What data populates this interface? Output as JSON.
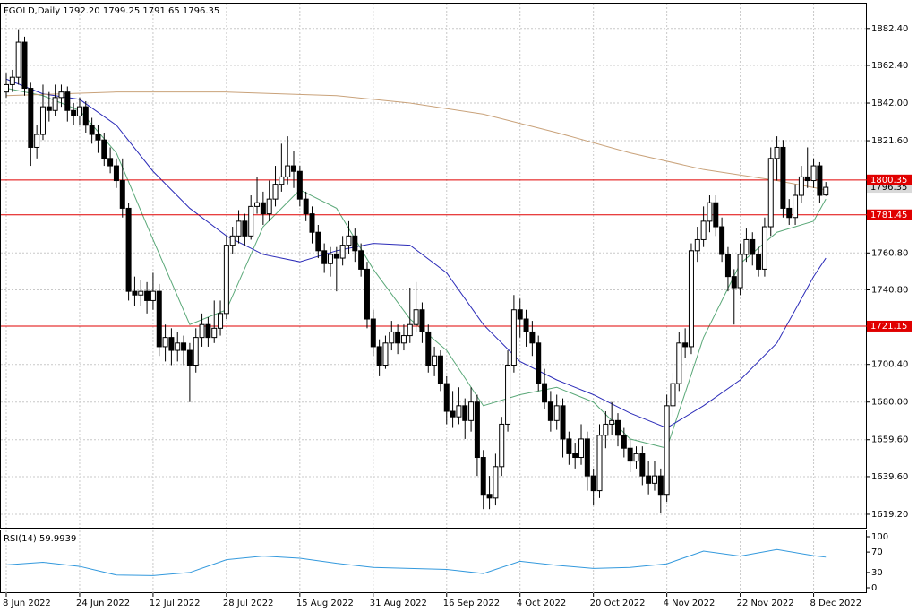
{
  "chart_data": {
    "type": "candlestick",
    "title": "FGOLD,Daily  1792.20 1799.25 1791.65 1796.35",
    "categories": [
      "8 Jun 2022",
      null,
      null,
      null,
      null,
      null,
      null,
      null,
      null,
      null,
      null,
      null,
      "24 Jun 2022",
      null,
      null,
      null,
      null,
      null,
      null,
      null,
      null,
      null,
      null,
      null,
      "12 Jul 2022",
      null,
      null,
      null,
      null,
      null,
      null,
      null,
      null,
      null,
      null,
      null,
      "28 Jul 2022",
      null,
      null,
      null,
      null,
      null,
      null,
      null,
      null,
      null,
      null,
      null,
      "15 Aug 2022",
      null,
      null,
      null,
      null,
      null,
      null,
      null,
      null,
      null,
      null,
      null,
      "31 Aug 2022",
      null,
      null,
      null,
      null,
      null,
      null,
      null,
      null,
      null,
      null,
      null,
      "16 Sep 2022",
      null,
      null,
      null,
      null,
      null,
      null,
      null,
      null,
      null,
      null,
      null,
      "4 Oct 2022",
      null,
      null,
      null,
      null,
      null,
      null,
      null,
      null,
      null,
      null,
      null,
      "20 Oct 2022",
      null,
      null,
      null,
      null,
      null,
      null,
      null,
      null,
      null,
      null,
      null,
      "4 Nov 2022",
      null,
      null,
      null,
      null,
      null,
      null,
      null,
      null,
      null,
      null,
      null,
      "22 Nov 2022",
      null,
      null,
      null,
      null,
      null,
      null,
      null,
      null,
      null,
      null,
      null,
      "8 Dec 2022",
      null,
      null
    ],
    "candles": [
      [
        1848,
        1858,
        1845,
        1852
      ],
      [
        1852,
        1860,
        1848,
        1856
      ],
      [
        1856,
        1882,
        1852,
        1875
      ],
      [
        1875,
        1878,
        1846,
        1850
      ],
      [
        1850,
        1853,
        1808,
        1818
      ],
      [
        1818,
        1830,
        1812,
        1825
      ],
      [
        1825,
        1852,
        1822,
        1840
      ],
      [
        1840,
        1848,
        1832,
        1838
      ],
      [
        1838,
        1852,
        1835,
        1845
      ],
      [
        1845,
        1852,
        1840,
        1848
      ],
      [
        1848,
        1851,
        1832,
        1838
      ],
      [
        1838,
        1842,
        1830,
        1835
      ],
      [
        1835,
        1845,
        1830,
        1840
      ],
      [
        1840,
        1843,
        1826,
        1830
      ],
      [
        1830,
        1834,
        1820,
        1825
      ],
      [
        1825,
        1830,
        1815,
        1822
      ],
      [
        1822,
        1826,
        1808,
        1812
      ],
      [
        1812,
        1818,
        1804,
        1808
      ],
      [
        1808,
        1812,
        1796,
        1800
      ],
      [
        1800,
        1812,
        1780,
        1785
      ],
      [
        1785,
        1788,
        1735,
        1740
      ],
      [
        1740,
        1748,
        1732,
        1738
      ],
      [
        1738,
        1746,
        1732,
        1740
      ],
      [
        1740,
        1745,
        1728,
        1735
      ],
      [
        1735,
        1750,
        1730,
        1740
      ],
      [
        1740,
        1744,
        1705,
        1710
      ],
      [
        1710,
        1722,
        1702,
        1715
      ],
      [
        1715,
        1720,
        1700,
        1708
      ],
      [
        1708,
        1718,
        1702,
        1712
      ],
      [
        1712,
        1716,
        1700,
        1708
      ],
      [
        1708,
        1712,
        1680,
        1700
      ],
      [
        1700,
        1720,
        1696,
        1715
      ],
      [
        1715,
        1728,
        1710,
        1722
      ],
      [
        1722,
        1726,
        1710,
        1715
      ],
      [
        1715,
        1735,
        1712,
        1720
      ],
      [
        1720,
        1735,
        1716,
        1728
      ],
      [
        1728,
        1770,
        1725,
        1765
      ],
      [
        1765,
        1775,
        1760,
        1770
      ],
      [
        1770,
        1784,
        1766,
        1778
      ],
      [
        1778,
        1782,
        1765,
        1770
      ],
      [
        1770,
        1792,
        1768,
        1786
      ],
      [
        1786,
        1802,
        1782,
        1788
      ],
      [
        1788,
        1794,
        1776,
        1782
      ],
      [
        1782,
        1800,
        1778,
        1790
      ],
      [
        1790,
        1808,
        1786,
        1798
      ],
      [
        1798,
        1820,
        1794,
        1802
      ],
      [
        1802,
        1824,
        1798,
        1808
      ],
      [
        1808,
        1816,
        1796,
        1805
      ],
      [
        1805,
        1808,
        1786,
        1790
      ],
      [
        1790,
        1794,
        1778,
        1782
      ],
      [
        1782,
        1786,
        1766,
        1772
      ],
      [
        1772,
        1776,
        1758,
        1762
      ],
      [
        1762,
        1766,
        1750,
        1755
      ],
      [
        1755,
        1764,
        1748,
        1760
      ],
      [
        1760,
        1764,
        1740,
        1758
      ],
      [
        1758,
        1770,
        1754,
        1765
      ],
      [
        1765,
        1778,
        1760,
        1770
      ],
      [
        1770,
        1774,
        1756,
        1762
      ],
      [
        1762,
        1766,
        1748,
        1752
      ],
      [
        1752,
        1756,
        1720,
        1725
      ],
      [
        1725,
        1730,
        1705,
        1710
      ],
      [
        1710,
        1714,
        1694,
        1700
      ],
      [
        1700,
        1716,
        1698,
        1712
      ],
      [
        1712,
        1724,
        1708,
        1718
      ],
      [
        1718,
        1722,
        1706,
        1712
      ],
      [
        1712,
        1722,
        1708,
        1716
      ],
      [
        1716,
        1742,
        1712,
        1722
      ],
      [
        1722,
        1745,
        1718,
        1730
      ],
      [
        1730,
        1734,
        1712,
        1718
      ],
      [
        1718,
        1722,
        1696,
        1700
      ],
      [
        1700,
        1710,
        1694,
        1705
      ],
      [
        1705,
        1708,
        1686,
        1690
      ],
      [
        1690,
        1694,
        1668,
        1675
      ],
      [
        1675,
        1686,
        1666,
        1672
      ],
      [
        1672,
        1688,
        1668,
        1678
      ],
      [
        1678,
        1682,
        1660,
        1670
      ],
      [
        1670,
        1688,
        1664,
        1680
      ],
      [
        1680,
        1684,
        1640,
        1650
      ],
      [
        1650,
        1654,
        1622,
        1630
      ],
      [
        1630,
        1640,
        1622,
        1628
      ],
      [
        1628,
        1652,
        1624,
        1645
      ],
      [
        1645,
        1672,
        1640,
        1668
      ],
      [
        1668,
        1708,
        1664,
        1700
      ],
      [
        1700,
        1738,
        1696,
        1730
      ],
      [
        1730,
        1736,
        1715,
        1725
      ],
      [
        1725,
        1730,
        1710,
        1718
      ],
      [
        1718,
        1724,
        1705,
        1712
      ],
      [
        1712,
        1716,
        1686,
        1690
      ],
      [
        1690,
        1698,
        1676,
        1680
      ],
      [
        1680,
        1686,
        1664,
        1670
      ],
      [
        1670,
        1684,
        1665,
        1678
      ],
      [
        1678,
        1682,
        1650,
        1660
      ],
      [
        1660,
        1664,
        1646,
        1652
      ],
      [
        1652,
        1658,
        1644,
        1650
      ],
      [
        1650,
        1668,
        1646,
        1660
      ],
      [
        1660,
        1664,
        1632,
        1640
      ],
      [
        1640,
        1644,
        1624,
        1632
      ],
      [
        1632,
        1668,
        1628,
        1662
      ],
      [
        1662,
        1675,
        1655,
        1668
      ],
      [
        1668,
        1680,
        1662,
        1670
      ],
      [
        1670,
        1674,
        1656,
        1662
      ],
      [
        1662,
        1666,
        1650,
        1655
      ],
      [
        1655,
        1660,
        1642,
        1648
      ],
      [
        1648,
        1656,
        1644,
        1652
      ],
      [
        1652,
        1656,
        1635,
        1640
      ],
      [
        1640,
        1648,
        1630,
        1636
      ],
      [
        1636,
        1648,
        1632,
        1640
      ],
      [
        1640,
        1644,
        1620,
        1630
      ],
      [
        1630,
        1684,
        1626,
        1678
      ],
      [
        1678,
        1696,
        1672,
        1690
      ],
      [
        1690,
        1718,
        1686,
        1712
      ],
      [
        1712,
        1720,
        1704,
        1710
      ],
      [
        1710,
        1766,
        1706,
        1762
      ],
      [
        1762,
        1775,
        1756,
        1768
      ],
      [
        1768,
        1786,
        1764,
        1778
      ],
      [
        1778,
        1792,
        1772,
        1788
      ],
      [
        1788,
        1792,
        1770,
        1775
      ],
      [
        1775,
        1780,
        1756,
        1760
      ],
      [
        1760,
        1764,
        1740,
        1748
      ],
      [
        1748,
        1752,
        1722,
        1742
      ],
      [
        1742,
        1766,
        1738,
        1760
      ],
      [
        1760,
        1774,
        1756,
        1768
      ],
      [
        1768,
        1772,
        1754,
        1760
      ],
      [
        1760,
        1764,
        1748,
        1752
      ],
      [
        1752,
        1780,
        1748,
        1775
      ],
      [
        1775,
        1818,
        1770,
        1812
      ],
      [
        1812,
        1824,
        1800,
        1818
      ],
      [
        1818,
        1822,
        1780,
        1785
      ],
      [
        1785,
        1790,
        1776,
        1780
      ],
      [
        1780,
        1798,
        1776,
        1792
      ],
      [
        1792,
        1808,
        1788,
        1802
      ],
      [
        1802,
        1818,
        1796,
        1800
      ],
      [
        1800,
        1812,
        1796,
        1808
      ],
      [
        1808,
        1810,
        1788,
        1792
      ],
      [
        1792.2,
        1799.25,
        1791.65,
        1796.35
      ]
    ],
    "bull_color": "#ffffff",
    "bear_color": "#000000",
    "overlays": [
      {
        "color": "#5aa878",
        "x": [
          0,
          6,
          12,
          18,
          24,
          30,
          36,
          42,
          48,
          54,
          60,
          66,
          72,
          78,
          84,
          90,
          96,
          102,
          108,
          114,
          120,
          126,
          132,
          134
        ],
        "values": [
          1850,
          1846,
          1838,
          1815,
          1768,
          1722,
          1730,
          1775,
          1795,
          1785,
          1752,
          1725,
          1708,
          1678,
          1684,
          1688,
          1680,
          1660,
          1655,
          1715,
          1755,
          1772,
          1778,
          1790
        ]
      },
      {
        "color": "#2b2bb8",
        "x": [
          0,
          6,
          12,
          18,
          24,
          30,
          36,
          42,
          48,
          54,
          60,
          66,
          72,
          78,
          84,
          90,
          96,
          102,
          108,
          114,
          120,
          126,
          132,
          134
        ],
        "values": [
          1855,
          1847,
          1844,
          1830,
          1805,
          1785,
          1770,
          1760,
          1756,
          1762,
          1766,
          1765,
          1750,
          1722,
          1702,
          1692,
          1684,
          1674,
          1666,
          1678,
          1692,
          1712,
          1748,
          1758
        ]
      },
      {
        "color": "#c9a27a",
        "x": [
          0,
          18,
          36,
          54,
          66,
          78,
          90,
          102,
          114,
          126,
          134
        ],
        "values": [
          1846,
          1848,
          1848,
          1846,
          1842,
          1836,
          1826,
          1815,
          1806,
          1800,
          1795
        ]
      }
    ],
    "ylim": [
      1611.9,
      1895.9
    ],
    "yticks": [
      {
        "value": 1882.4,
        "label": "1882.40"
      },
      {
        "value": 1862.4,
        "label": "1862.40"
      },
      {
        "value": 1842,
        "label": "1842.00"
      },
      {
        "value": 1821.6,
        "label": "1821.60"
      },
      {
        "value": 1760.8,
        "label": "1760.80"
      },
      {
        "value": 1740.8,
        "label": "1740.80"
      },
      {
        "value": 1700.4,
        "label": "1700.40"
      },
      {
        "value": 1680,
        "label": "1680.00"
      },
      {
        "value": 1659.6,
        "label": "1659.60"
      },
      {
        "value": 1639.6,
        "label": "1639.60"
      },
      {
        "value": 1619.2,
        "label": "1619.20"
      }
    ],
    "levels": [
      {
        "value": 1800.35,
        "label": "1800.35"
      },
      {
        "value": 1781.45,
        "label": "1781.45"
      },
      {
        "value": 1721.15,
        "label": "1721.15"
      }
    ],
    "level_color": "#e00000",
    "last_price": {
      "value": 1796.35,
      "label": "1796.35"
    },
    "grid": true,
    "rsi": {
      "title": "RSI(14) 59.9939",
      "color": "#3399dd",
      "x": [
        0,
        6,
        12,
        18,
        24,
        30,
        36,
        42,
        48,
        54,
        60,
        66,
        72,
        78,
        84,
        90,
        96,
        102,
        108,
        114,
        120,
        126,
        132,
        134
      ],
      "values": [
        45,
        50,
        42,
        25,
        24,
        30,
        55,
        62,
        58,
        48,
        40,
        38,
        36,
        28,
        52,
        44,
        38,
        40,
        47,
        72,
        62,
        75,
        63,
        60
      ],
      "ylim": [
        -10.5,
        112.3
      ],
      "yticks": [
        100,
        70,
        30,
        0
      ]
    }
  }
}
